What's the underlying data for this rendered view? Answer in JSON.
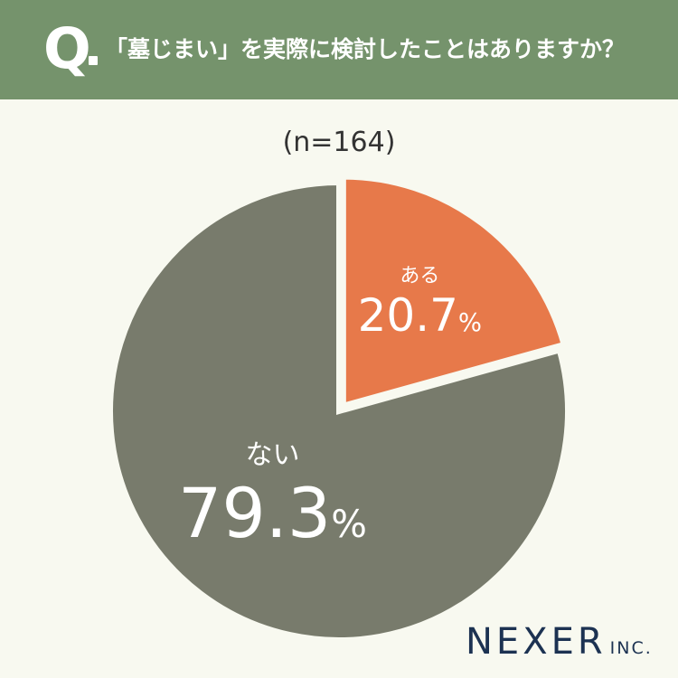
{
  "header": {
    "q_letter": "Q",
    "question": "「墓じまい」を実際に検討したことはありますか？"
  },
  "sample_size": "(n=164)",
  "colors": {
    "header_bg": "#75936c",
    "slice_yes": "#e7794a",
    "slice_no": "#787b6c",
    "background": "#f8f9f0",
    "logo": "#1c3252"
  },
  "chart_data": {
    "type": "pie",
    "title": "「墓じまい」を実際に検討したことはありますか？",
    "slices": [
      {
        "label": "ある",
        "value": 20.7,
        "display": "20.7",
        "unit": "%",
        "color": "#e7794a",
        "exploded": true
      },
      {
        "label": "ない",
        "value": 79.3,
        "display": "79.3",
        "unit": "%",
        "color": "#787b6c",
        "exploded": false
      }
    ]
  },
  "logo": {
    "main": "NEXER",
    "sub": "INC."
  }
}
